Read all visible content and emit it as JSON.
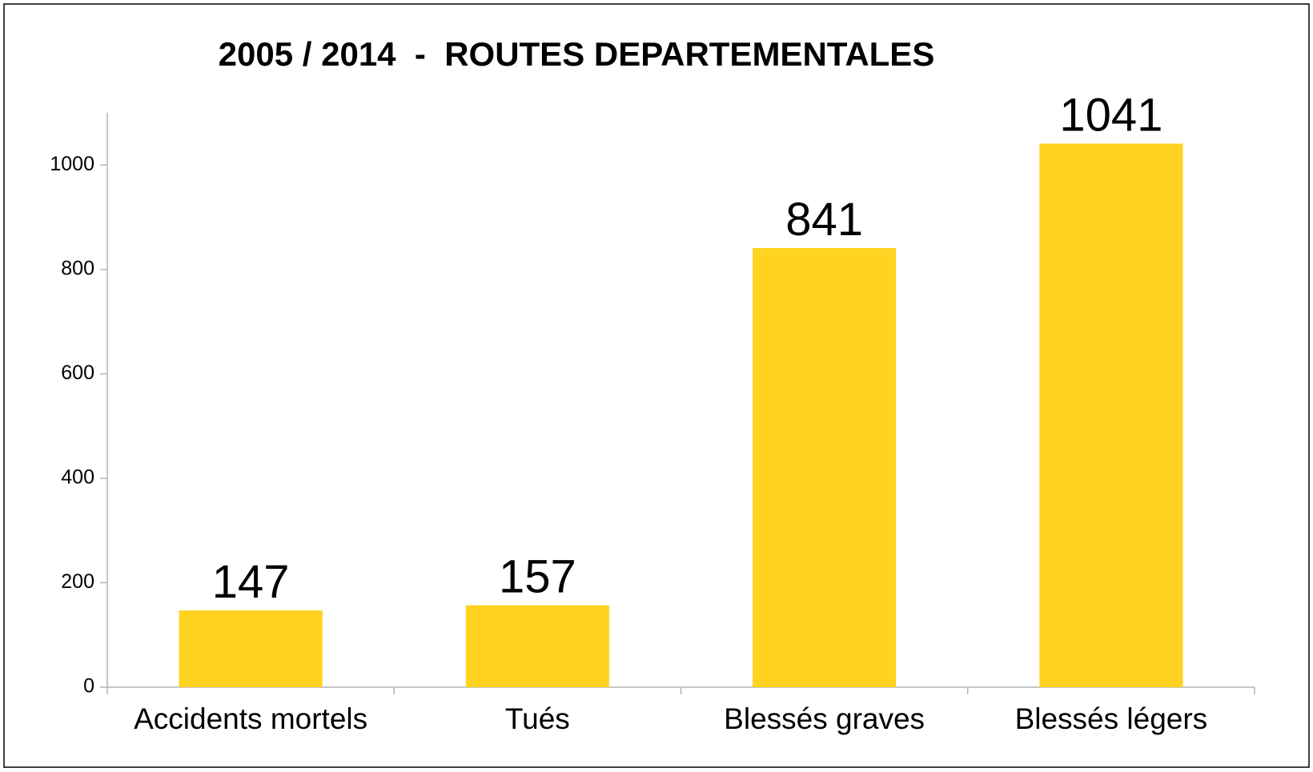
{
  "chart_data": {
    "type": "bar",
    "title": "2005 / 2014  -  ROUTES DEPARTEMENTALES",
    "categories": [
      "Accidents mortels",
      "Tués",
      "Blessés graves",
      "Blessés légers"
    ],
    "values": [
      147,
      157,
      841,
      1041
    ],
    "color": "#ffd320",
    "ylim": [
      0,
      1100
    ],
    "yticks": [
      0,
      200,
      400,
      600,
      800,
      1000
    ],
    "grid": false
  }
}
